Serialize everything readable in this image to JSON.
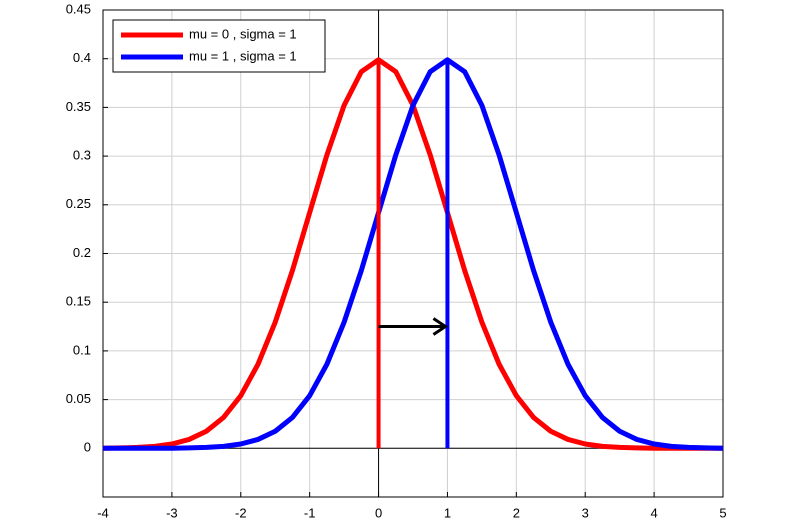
{
  "chart_data": {
    "type": "line",
    "x": [
      -4,
      -3.75,
      -3.5,
      -3.25,
      -3,
      -2.75,
      -2.5,
      -2.25,
      -2,
      -1.75,
      -1.5,
      -1.25,
      -1,
      -0.75,
      -0.5,
      -0.25,
      0,
      0.25,
      0.5,
      0.75,
      1,
      1.25,
      1.5,
      1.75,
      2,
      2.25,
      2.5,
      2.75,
      3,
      3.25,
      3.5,
      3.75,
      4,
      4.25,
      4.5,
      4.75,
      5
    ],
    "series": [
      {
        "name": "mu = 0 , sigma = 1",
        "color": "#ff0000",
        "values": [
          0.0001,
          0.0004,
          0.0009,
          0.002,
          0.0044,
          0.0091,
          0.0175,
          0.0317,
          0.054,
          0.0863,
          0.1295,
          0.1826,
          0.242,
          0.3011,
          0.3521,
          0.3867,
          0.3989,
          0.3867,
          0.3521,
          0.3011,
          0.242,
          0.1826,
          0.1295,
          0.0863,
          0.054,
          0.0317,
          0.0175,
          0.0091,
          0.0044,
          0.002,
          0.0009,
          0.0004,
          0.0001,
          0,
          0,
          0,
          0
        ]
      },
      {
        "name": "mu = 1 , sigma = 1",
        "color": "#0000ff",
        "values": [
          0,
          0,
          0,
          0,
          0.0001,
          0.0004,
          0.0009,
          0.002,
          0.0044,
          0.0091,
          0.0175,
          0.0317,
          0.054,
          0.0863,
          0.1295,
          0.1826,
          0.242,
          0.3011,
          0.3521,
          0.3867,
          0.3989,
          0.3867,
          0.3521,
          0.3011,
          0.242,
          0.1826,
          0.1295,
          0.0863,
          0.054,
          0.0317,
          0.0175,
          0.0091,
          0.0044,
          0.002,
          0.0009,
          0.0004,
          0.0001
        ]
      }
    ],
    "vlines": [
      {
        "x": 0,
        "y": 0.3989,
        "color": "#ff0000"
      },
      {
        "x": 1,
        "y": 0.3989,
        "color": "#0000ff"
      }
    ],
    "arrow": {
      "x": [
        0,
        1
      ],
      "y": 0.125
    },
    "xlim": [
      -4,
      5
    ],
    "ylim": [
      -0.05,
      0.45
    ],
    "xticks": [
      -4,
      -3,
      -2,
      -1,
      0,
      1,
      2,
      3,
      4,
      5
    ],
    "yticks": [
      0,
      0.05,
      0.1,
      0.15,
      0.2,
      0.25,
      0.3,
      0.35,
      0.4,
      0.45
    ],
    "grid": true,
    "legend": "upper left"
  }
}
